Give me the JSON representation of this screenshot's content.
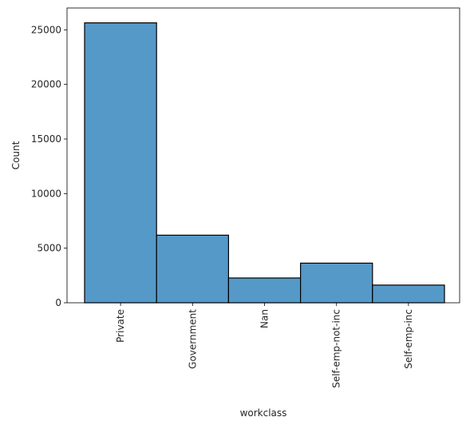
{
  "chart_data": {
    "type": "bar",
    "xlabel": "workclass",
    "ylabel": "Count",
    "categories": [
      "Private",
      "Government",
      "Nan",
      "Self-emp-not-inc",
      "Self-emp-inc"
    ],
    "values": [
      25640,
      6190,
      2270,
      3630,
      1620
    ],
    "ylim": [
      0,
      27000
    ],
    "yticks": [
      0,
      5000,
      10000,
      15000,
      20000,
      25000
    ],
    "ytick_labels": [
      "0",
      "5000",
      "10000",
      "15000",
      "20000",
      "25000"
    ],
    "bar_color": "#5599c8",
    "edge_color": "#000000",
    "grid": false,
    "legend": "none"
  }
}
